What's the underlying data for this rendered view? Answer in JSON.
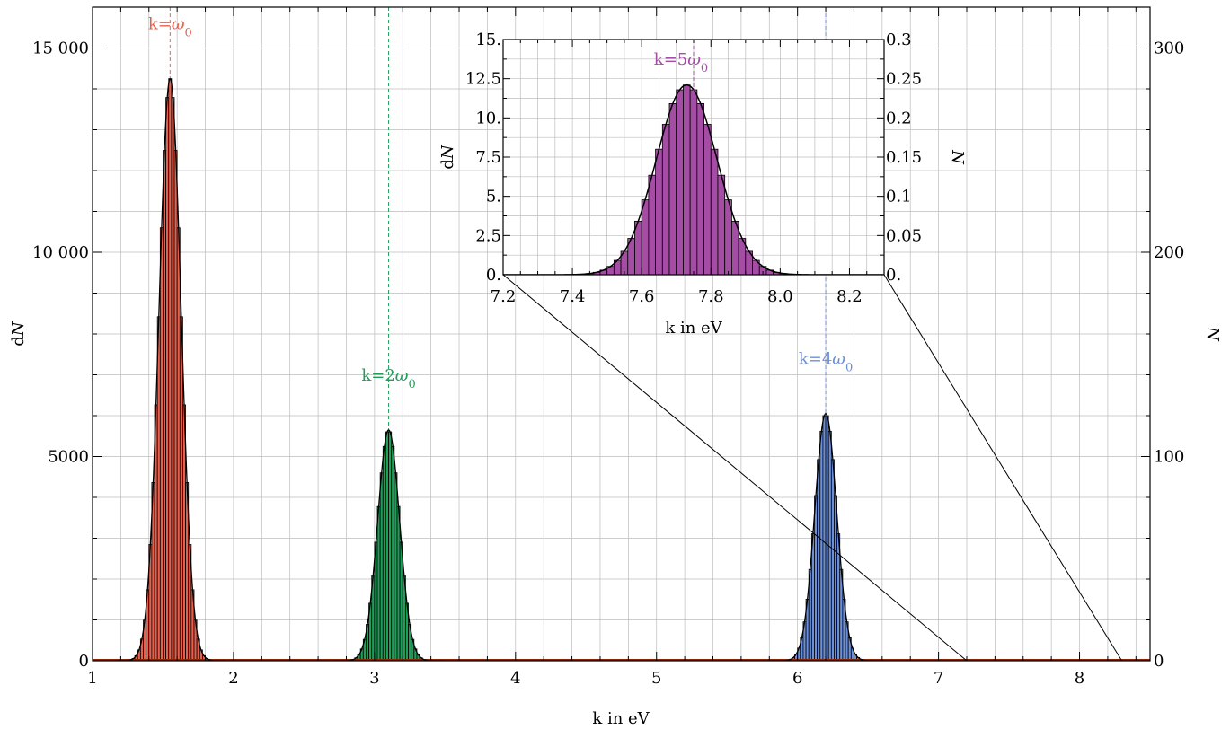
{
  "chart_data": [
    {
      "type": "histogram",
      "xlabel": "k in eV",
      "ylabel_left": "dN",
      "ylabel_right": "N",
      "xlim": [
        1,
        8.5
      ],
      "ylim_left": [
        0,
        16000
      ],
      "ylim_right": [
        0,
        320
      ],
      "x_ticks": [
        1,
        2,
        3,
        4,
        5,
        6,
        7,
        8
      ],
      "x_tick_labels": [
        "1",
        "2",
        "3",
        "4",
        "5",
        "6",
        "7",
        "8"
      ],
      "y_ticks_left": [
        0,
        5000,
        10000,
        15000
      ],
      "y_tick_labels_left": [
        "0",
        "5000",
        "10 000",
        "15 000"
      ],
      "y_ticks_right": [
        0,
        100,
        200,
        300
      ],
      "y_tick_labels_right": [
        "0",
        "100",
        "200",
        "300"
      ],
      "grid": true,
      "series": [
        {
          "annotation": "k=ω0",
          "center": 1.55,
          "peak": 14250,
          "sigma": 0.078,
          "color": "#e8604c"
        },
        {
          "annotation": "k=2ω0",
          "center": 3.1,
          "peak": 5650,
          "sigma": 0.078,
          "color": "#1f9e5a"
        },
        {
          "annotation": "k=4ω0",
          "center": 6.2,
          "peak": 6050,
          "sigma": 0.078,
          "color": "#6b8fd8"
        }
      ],
      "bin_width": 0.02,
      "baseline_color": "#8b2500"
    },
    {
      "type": "histogram",
      "role": "inset",
      "xlabel": "k in eV",
      "ylabel_left": "dN",
      "ylabel_right": "N",
      "xlim": [
        7.2,
        8.3
      ],
      "ylim_left": [
        0,
        15
      ],
      "ylim_right": [
        0,
        0.3
      ],
      "x_ticks": [
        7.2,
        7.4,
        7.6,
        7.8,
        8.0,
        8.2
      ],
      "x_tick_labels": [
        "7.2",
        "7.4",
        "7.6",
        "7.8",
        "8.0",
        "8.2"
      ],
      "y_ticks_left": [
        0,
        2.5,
        5,
        7.5,
        10,
        12.5,
        15
      ],
      "y_tick_labels_left": [
        "0.",
        "2.5",
        "5.",
        "7.5",
        "10.",
        "12.5",
        "15."
      ],
      "y_ticks_right": [
        0,
        0.05,
        0.1,
        0.15,
        0.2,
        0.25,
        0.3
      ],
      "y_tick_labels_right": [
        "0.",
        "0.05",
        "0.1",
        "0.15",
        "0.2",
        "0.25",
        "0.3"
      ],
      "grid": true,
      "series": [
        {
          "annotation": "k=5ω0",
          "center": 7.73,
          "peak": 12.1,
          "sigma": 0.088,
          "color": "#a54ca5"
        }
      ],
      "annotation_x": 7.75,
      "bin_width": 0.02
    }
  ]
}
